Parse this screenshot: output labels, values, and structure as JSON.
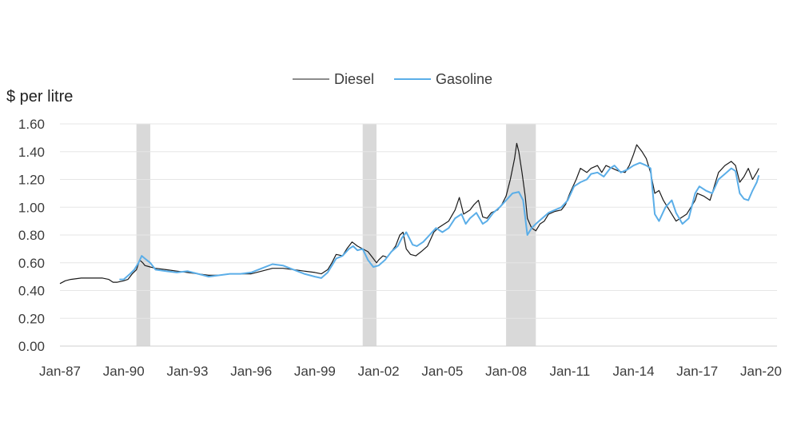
{
  "chart_data": {
    "type": "line",
    "ylabel": "$ per litre",
    "ylim": [
      0,
      1.6
    ],
    "yticks": [
      "0.00",
      "0.20",
      "0.40",
      "0.60",
      "0.80",
      "1.00",
      "1.20",
      "1.40",
      "1.60"
    ],
    "xlim": [
      1987.0,
      2020.0
    ],
    "xticks": [
      {
        "label": "Jan-87",
        "value": 1987.0
      },
      {
        "label": "Jan-90",
        "value": 1990.0
      },
      {
        "label": "Jan-93",
        "value": 1993.0
      },
      {
        "label": "Jan-96",
        "value": 1996.0
      },
      {
        "label": "Jan-99",
        "value": 1999.0
      },
      {
        "label": "Jan-02",
        "value": 2002.0
      },
      {
        "label": "Jan-05",
        "value": 2005.0
      },
      {
        "label": "Jan-08",
        "value": 2008.0
      },
      {
        "label": "Jan-11",
        "value": 2011.0
      },
      {
        "label": "Jan-14",
        "value": 2014.0
      },
      {
        "label": "Jan-17",
        "value": 2017.0
      },
      {
        "label": "Jan-20",
        "value": 2020.0
      }
    ],
    "grid": true,
    "legend_position": "top-center",
    "recessions": [
      [
        1990.6,
        1991.25
      ],
      [
        2001.25,
        2001.9
      ],
      [
        2008.0,
        2009.4
      ]
    ],
    "series": [
      {
        "name": "Diesel",
        "color": "#1a1a1a",
        "points": [
          [
            1987.0,
            0.45
          ],
          [
            1987.25,
            0.47
          ],
          [
            1987.5,
            0.48
          ],
          [
            1988.0,
            0.49
          ],
          [
            1988.5,
            0.49
          ],
          [
            1989.0,
            0.49
          ],
          [
            1989.3,
            0.48
          ],
          [
            1989.5,
            0.46
          ],
          [
            1989.7,
            0.46
          ],
          [
            1990.0,
            0.47
          ],
          [
            1990.2,
            0.48
          ],
          [
            1990.4,
            0.52
          ],
          [
            1990.6,
            0.55
          ],
          [
            1990.75,
            0.62
          ],
          [
            1990.9,
            0.6
          ],
          [
            1991.0,
            0.58
          ],
          [
            1991.25,
            0.57
          ],
          [
            1991.5,
            0.56
          ],
          [
            1992.0,
            0.55
          ],
          [
            1992.5,
            0.54
          ],
          [
            1993.0,
            0.53
          ],
          [
            1993.5,
            0.52
          ],
          [
            1994.0,
            0.51
          ],
          [
            1994.5,
            0.51
          ],
          [
            1995.0,
            0.52
          ],
          [
            1995.5,
            0.52
          ],
          [
            1996.0,
            0.52
          ],
          [
            1996.5,
            0.54
          ],
          [
            1997.0,
            0.56
          ],
          [
            1997.5,
            0.56
          ],
          [
            1998.0,
            0.55
          ],
          [
            1998.5,
            0.54
          ],
          [
            1999.0,
            0.53
          ],
          [
            1999.3,
            0.52
          ],
          [
            1999.6,
            0.55
          ],
          [
            1999.8,
            0.6
          ],
          [
            2000.0,
            0.66
          ],
          [
            2000.3,
            0.65
          ],
          [
            2000.5,
            0.7
          ],
          [
            2000.75,
            0.75
          ],
          [
            2001.0,
            0.72
          ],
          [
            2001.25,
            0.7
          ],
          [
            2001.5,
            0.68
          ],
          [
            2001.7,
            0.64
          ],
          [
            2001.9,
            0.6
          ],
          [
            2002.0,
            0.62
          ],
          [
            2002.2,
            0.65
          ],
          [
            2002.4,
            0.64
          ],
          [
            2002.6,
            0.68
          ],
          [
            2002.8,
            0.72
          ],
          [
            2003.0,
            0.8
          ],
          [
            2003.15,
            0.82
          ],
          [
            2003.3,
            0.7
          ],
          [
            2003.5,
            0.66
          ],
          [
            2003.75,
            0.65
          ],
          [
            2004.0,
            0.68
          ],
          [
            2004.3,
            0.72
          ],
          [
            2004.6,
            0.82
          ],
          [
            2004.8,
            0.85
          ],
          [
            2005.0,
            0.87
          ],
          [
            2005.3,
            0.9
          ],
          [
            2005.6,
            0.98
          ],
          [
            2005.8,
            1.07
          ],
          [
            2006.0,
            0.95
          ],
          [
            2006.3,
            0.98
          ],
          [
            2006.5,
            1.02
          ],
          [
            2006.7,
            1.05
          ],
          [
            2006.9,
            0.93
          ],
          [
            2007.1,
            0.92
          ],
          [
            2007.3,
            0.96
          ],
          [
            2007.6,
            0.98
          ],
          [
            2007.8,
            1.02
          ],
          [
            2008.0,
            1.08
          ],
          [
            2008.2,
            1.2
          ],
          [
            2008.4,
            1.35
          ],
          [
            2008.5,
            1.46
          ],
          [
            2008.6,
            1.4
          ],
          [
            2008.75,
            1.25
          ],
          [
            2008.9,
            1.08
          ],
          [
            2009.0,
            0.92
          ],
          [
            2009.2,
            0.85
          ],
          [
            2009.4,
            0.83
          ],
          [
            2009.6,
            0.88
          ],
          [
            2009.8,
            0.9
          ],
          [
            2010.0,
            0.95
          ],
          [
            2010.3,
            0.97
          ],
          [
            2010.6,
            0.98
          ],
          [
            2010.8,
            1.02
          ],
          [
            2011.0,
            1.1
          ],
          [
            2011.3,
            1.2
          ],
          [
            2011.5,
            1.28
          ],
          [
            2011.8,
            1.25
          ],
          [
            2012.0,
            1.28
          ],
          [
            2012.3,
            1.3
          ],
          [
            2012.5,
            1.25
          ],
          [
            2012.7,
            1.3
          ],
          [
            2013.0,
            1.28
          ],
          [
            2013.3,
            1.26
          ],
          [
            2013.6,
            1.25
          ],
          [
            2013.8,
            1.3
          ],
          [
            2014.0,
            1.38
          ],
          [
            2014.15,
            1.45
          ],
          [
            2014.4,
            1.4
          ],
          [
            2014.6,
            1.35
          ],
          [
            2014.8,
            1.25
          ],
          [
            2015.0,
            1.1
          ],
          [
            2015.2,
            1.12
          ],
          [
            2015.4,
            1.05
          ],
          [
            2015.6,
            1.0
          ],
          [
            2015.8,
            0.95
          ],
          [
            2016.0,
            0.9
          ],
          [
            2016.2,
            0.92
          ],
          [
            2016.5,
            0.95
          ],
          [
            2016.7,
            1.0
          ],
          [
            2016.9,
            1.05
          ],
          [
            2017.0,
            1.1
          ],
          [
            2017.3,
            1.08
          ],
          [
            2017.6,
            1.05
          ],
          [
            2017.8,
            1.15
          ],
          [
            2018.0,
            1.25
          ],
          [
            2018.3,
            1.3
          ],
          [
            2018.6,
            1.33
          ],
          [
            2018.8,
            1.3
          ],
          [
            2019.0,
            1.18
          ],
          [
            2019.2,
            1.22
          ],
          [
            2019.4,
            1.28
          ],
          [
            2019.6,
            1.2
          ],
          [
            2019.8,
            1.25
          ],
          [
            2019.9,
            1.28
          ]
        ]
      },
      {
        "name": "Gasoline",
        "color": "#5baee8",
        "points": [
          [
            1989.8,
            0.48
          ],
          [
            1990.0,
            0.48
          ],
          [
            1990.3,
            0.52
          ],
          [
            1990.5,
            0.55
          ],
          [
            1990.7,
            0.6
          ],
          [
            1990.85,
            0.65
          ],
          [
            1991.0,
            0.63
          ],
          [
            1991.25,
            0.6
          ],
          [
            1991.5,
            0.55
          ],
          [
            1992.0,
            0.54
          ],
          [
            1992.5,
            0.53
          ],
          [
            1993.0,
            0.54
          ],
          [
            1993.5,
            0.52
          ],
          [
            1994.0,
            0.5
          ],
          [
            1994.5,
            0.51
          ],
          [
            1995.0,
            0.52
          ],
          [
            1995.5,
            0.52
          ],
          [
            1996.0,
            0.53
          ],
          [
            1996.5,
            0.56
          ],
          [
            1997.0,
            0.59
          ],
          [
            1997.5,
            0.58
          ],
          [
            1998.0,
            0.55
          ],
          [
            1998.5,
            0.52
          ],
          [
            1999.0,
            0.5
          ],
          [
            1999.3,
            0.49
          ],
          [
            1999.6,
            0.53
          ],
          [
            1999.8,
            0.58
          ],
          [
            2000.0,
            0.63
          ],
          [
            2000.3,
            0.65
          ],
          [
            2000.6,
            0.7
          ],
          [
            2000.8,
            0.72
          ],
          [
            2001.0,
            0.69
          ],
          [
            2001.25,
            0.7
          ],
          [
            2001.5,
            0.62
          ],
          [
            2001.75,
            0.57
          ],
          [
            2002.0,
            0.58
          ],
          [
            2002.3,
            0.62
          ],
          [
            2002.6,
            0.68
          ],
          [
            2002.9,
            0.72
          ],
          [
            2003.1,
            0.78
          ],
          [
            2003.3,
            0.82
          ],
          [
            2003.6,
            0.73
          ],
          [
            2003.8,
            0.72
          ],
          [
            2004.1,
            0.75
          ],
          [
            2004.4,
            0.8
          ],
          [
            2004.7,
            0.85
          ],
          [
            2005.0,
            0.82
          ],
          [
            2005.3,
            0.85
          ],
          [
            2005.6,
            0.92
          ],
          [
            2005.9,
            0.95
          ],
          [
            2006.1,
            0.88
          ],
          [
            2006.3,
            0.92
          ],
          [
            2006.6,
            0.96
          ],
          [
            2006.9,
            0.88
          ],
          [
            2007.1,
            0.9
          ],
          [
            2007.4,
            0.96
          ],
          [
            2007.7,
            1.0
          ],
          [
            2008.0,
            1.05
          ],
          [
            2008.3,
            1.1
          ],
          [
            2008.6,
            1.11
          ],
          [
            2008.8,
            1.05
          ],
          [
            2009.0,
            0.8
          ],
          [
            2009.2,
            0.85
          ],
          [
            2009.4,
            0.88
          ],
          [
            2009.7,
            0.92
          ],
          [
            2010.0,
            0.96
          ],
          [
            2010.3,
            0.98
          ],
          [
            2010.6,
            1.0
          ],
          [
            2010.9,
            1.05
          ],
          [
            2011.2,
            1.15
          ],
          [
            2011.5,
            1.18
          ],
          [
            2011.8,
            1.2
          ],
          [
            2012.0,
            1.24
          ],
          [
            2012.3,
            1.25
          ],
          [
            2012.6,
            1.22
          ],
          [
            2012.9,
            1.28
          ],
          [
            2013.1,
            1.3
          ],
          [
            2013.4,
            1.25
          ],
          [
            2013.7,
            1.27
          ],
          [
            2014.0,
            1.3
          ],
          [
            2014.3,
            1.32
          ],
          [
            2014.6,
            1.3
          ],
          [
            2014.8,
            1.28
          ],
          [
            2015.0,
            0.95
          ],
          [
            2015.2,
            0.9
          ],
          [
            2015.5,
            1.0
          ],
          [
            2015.8,
            1.05
          ],
          [
            2016.0,
            0.96
          ],
          [
            2016.3,
            0.88
          ],
          [
            2016.6,
            0.92
          ],
          [
            2016.9,
            1.1
          ],
          [
            2017.1,
            1.15
          ],
          [
            2017.4,
            1.12
          ],
          [
            2017.7,
            1.1
          ],
          [
            2018.0,
            1.2
          ],
          [
            2018.3,
            1.24
          ],
          [
            2018.6,
            1.28
          ],
          [
            2018.8,
            1.26
          ],
          [
            2019.0,
            1.1
          ],
          [
            2019.2,
            1.06
          ],
          [
            2019.4,
            1.05
          ],
          [
            2019.6,
            1.12
          ],
          [
            2019.8,
            1.18
          ],
          [
            2019.9,
            1.23
          ]
        ]
      }
    ]
  }
}
